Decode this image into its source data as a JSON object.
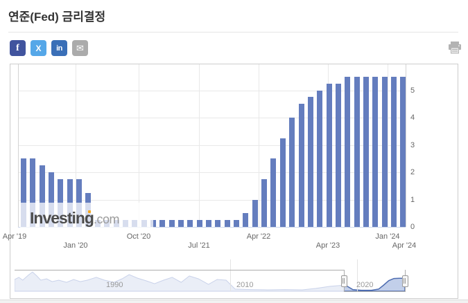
{
  "header": {
    "title": "연준(Fed) 금리결정"
  },
  "share_buttons": [
    {
      "name": "facebook",
      "glyph": "f",
      "color": "#41549e"
    },
    {
      "name": "x-twitter",
      "glyph": "X",
      "color": "#55a7e8"
    },
    {
      "name": "linkedin",
      "glyph": "in",
      "color": "#3a6fb7"
    },
    {
      "name": "email",
      "glyph": "✉",
      "color": "#ababab"
    }
  ],
  "watermark": {
    "bold": "Investing",
    "light": ".com"
  },
  "chart_data": {
    "type": "bar",
    "title": "연준(Fed) 금리결정",
    "ylabel": "",
    "unit": "%",
    "bar_color": "#647dbe",
    "grid": true,
    "legend_position": "none",
    "ylim": [
      0,
      5.95
    ],
    "yticks": [
      0,
      1,
      2,
      3,
      4,
      5
    ],
    "values": [
      2.5,
      2.5,
      2.25,
      2.0,
      1.75,
      1.75,
      1.75,
      1.25,
      0.25,
      0.25,
      0.25,
      0.25,
      0.25,
      0.25,
      0.25,
      0.25,
      0.25,
      0.25,
      0.25,
      0.25,
      0.25,
      0.25,
      0.25,
      0.25,
      0.5,
      1.0,
      1.75,
      2.5,
      3.25,
      4.0,
      4.5,
      4.75,
      5.0,
      5.25,
      5.25,
      5.5,
      5.5,
      5.5,
      5.5,
      5.5,
      5.5,
      5.5
    ],
    "x_ticks": [
      {
        "label": "Apr '19",
        "f": -0.009,
        "row": 0,
        "grid": false
      },
      {
        "label": "Jan '20",
        "f": 0.148,
        "row": 1,
        "grid": true
      },
      {
        "label": "Oct '20",
        "f": 0.311,
        "row": 0,
        "grid": true
      },
      {
        "label": "Jul '21",
        "f": 0.467,
        "row": 1,
        "grid": true
      },
      {
        "label": "Apr '22",
        "f": 0.621,
        "row": 0,
        "grid": true
      },
      {
        "label": "Apr '23",
        "f": 0.8,
        "row": 1,
        "grid": true
      },
      {
        "label": "Jan '24",
        "f": 0.953,
        "row": 0,
        "grid": true
      },
      {
        "label": "Apr '24",
        "f": 0.996,
        "row": 1,
        "grid": false
      }
    ],
    "navigator": {
      "labels": [
        {
          "text": "1990",
          "f": 0.234,
          "grid_f": null
        },
        {
          "text": "2010",
          "f": 0.567,
          "grid_f": 0.551
        },
        {
          "text": "2020",
          "f": 0.874,
          "grid_f": 0.876
        }
      ],
      "selection": {
        "from": 0.842,
        "to": 0.998
      },
      "series": [
        [
          0.0,
          5.0
        ],
        [
          0.011,
          5.9
        ],
        [
          0.021,
          4.7
        ],
        [
          0.035,
          6.8
        ],
        [
          0.046,
          8.2
        ],
        [
          0.057,
          6.5
        ],
        [
          0.067,
          4.7
        ],
        [
          0.082,
          5.3
        ],
        [
          0.096,
          4.1
        ],
        [
          0.113,
          4.7
        ],
        [
          0.133,
          3.8
        ],
        [
          0.151,
          5.0
        ],
        [
          0.168,
          4.1
        ],
        [
          0.186,
          4.7
        ],
        [
          0.209,
          5.9
        ],
        [
          0.23,
          4.7
        ],
        [
          0.254,
          3.8
        ],
        [
          0.275,
          5.3
        ],
        [
          0.293,
          7.1
        ],
        [
          0.314,
          5.6
        ],
        [
          0.337,
          4.4
        ],
        [
          0.358,
          3.2
        ],
        [
          0.381,
          4.7
        ],
        [
          0.403,
          5.9
        ],
        [
          0.426,
          3.8
        ],
        [
          0.447,
          6.5
        ],
        [
          0.47,
          5.3
        ],
        [
          0.496,
          2.9
        ],
        [
          0.518,
          5.0
        ],
        [
          0.541,
          4.7
        ],
        [
          0.564,
          0.9
        ],
        [
          0.603,
          0.7
        ],
        [
          0.647,
          0.6
        ],
        [
          0.691,
          0.7
        ],
        [
          0.736,
          0.6
        ],
        [
          0.771,
          1.2
        ],
        [
          0.807,
          2.1
        ],
        [
          0.842,
          2.6
        ],
        [
          0.851,
          2.1
        ],
        [
          0.865,
          0.7
        ],
        [
          0.887,
          0.4
        ],
        [
          0.913,
          0.4
        ],
        [
          0.931,
          0.9
        ],
        [
          0.943,
          2.5
        ],
        [
          0.957,
          4.5
        ],
        [
          0.97,
          5.4
        ],
        [
          0.984,
          5.5
        ],
        [
          0.998,
          5.5
        ]
      ]
    }
  }
}
